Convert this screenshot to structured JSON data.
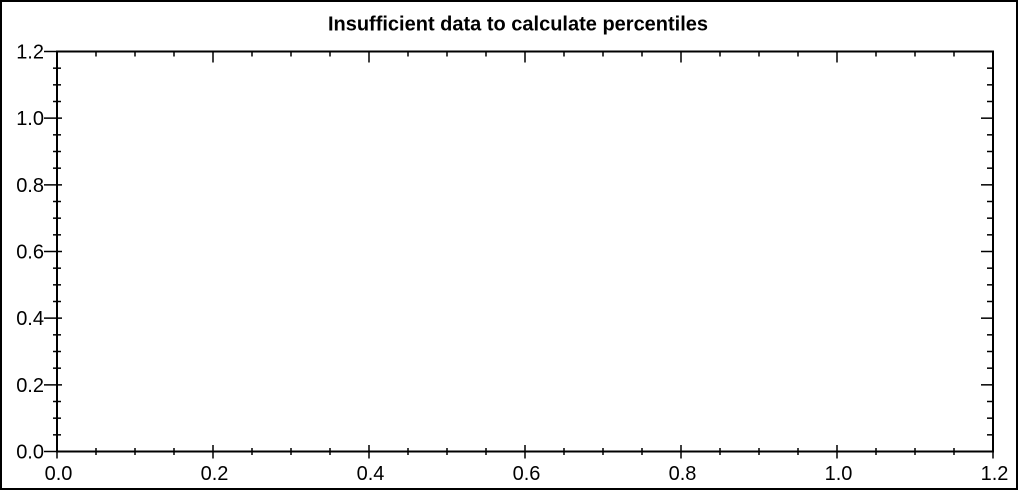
{
  "title": "Insufficient data to calculate percentiles",
  "colors": {
    "background": "#ffffff",
    "border": "#000000",
    "axis": "#000000",
    "text": "#000000"
  },
  "chart_data": {
    "type": "scatter",
    "title": "Insufficient data to calculate percentiles",
    "xlabel": "",
    "ylabel": "",
    "xlim": [
      0.0,
      1.2
    ],
    "ylim": [
      0.0,
      1.2
    ],
    "x_major_ticks": [
      0.0,
      0.2,
      0.4,
      0.6,
      0.8,
      1.0,
      1.2
    ],
    "x_tick_labels": [
      "0.0",
      "0.2",
      "0.4",
      "0.6",
      "0.8",
      "1.0",
      "1.2"
    ],
    "y_major_ticks": [
      0.0,
      0.2,
      0.4,
      0.6,
      0.8,
      1.0,
      1.2
    ],
    "y_tick_labels": [
      "0.0",
      "0.2",
      "0.4",
      "0.6",
      "0.8",
      "1.0",
      "1.2"
    ],
    "minor_tick_interval": 0.05,
    "grid": false,
    "legend": false,
    "series": [],
    "data_points": []
  }
}
